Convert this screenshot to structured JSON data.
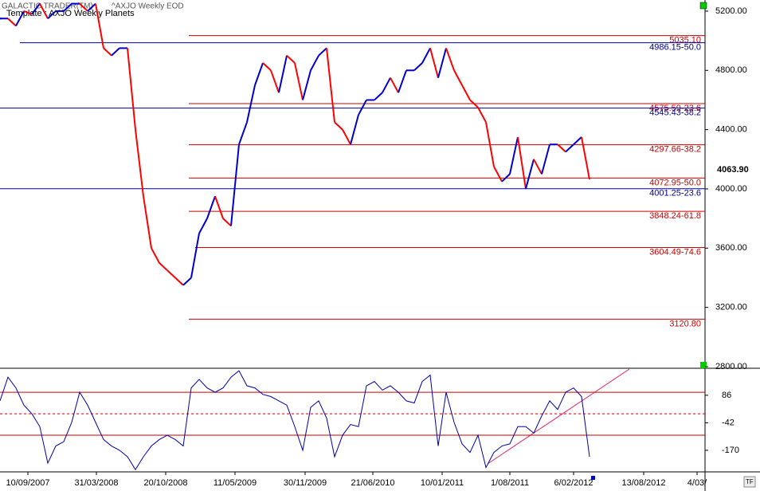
{
  "header": {
    "app": "GALACTIC TRADER(TM)",
    "symbol": "^AXJO Weekly EOD",
    "template": "Template : AXJO Weekly Planets",
    "tf": "TF"
  },
  "chart_data": [
    {
      "type": "line",
      "up_color": "#0000cc",
      "down_color": "#ff0000",
      "xlim": [
        0,
        885
      ],
      "ylim": [
        2800,
        5275
      ],
      "x": [
        0,
        10,
        20,
        30,
        40,
        50,
        60,
        70,
        80,
        90,
        100,
        110,
        120,
        130,
        140,
        150,
        160,
        170,
        180,
        190,
        200,
        210,
        220,
        230,
        240,
        250,
        260,
        270,
        280,
        290,
        300,
        310,
        320,
        330,
        340,
        350,
        360,
        370,
        380,
        390,
        400,
        410,
        420,
        430,
        440,
        450,
        460,
        470,
        480,
        490,
        500,
        510,
        520,
        530,
        540,
        550,
        560,
        570,
        580,
        590,
        600,
        610,
        620,
        630,
        640,
        650,
        660,
        670,
        680,
        690,
        700,
        710,
        720,
        730,
        740
      ],
      "series": [
        {
          "values": [
            5150,
            5150,
            5100,
            5200,
            5180,
            5250,
            5150,
            5200,
            5200,
            5250,
            5250,
            5200,
            5250,
            4950,
            4900,
            4950,
            4950,
            4400,
            3950,
            3600,
            3500,
            3450,
            3400,
            3350,
            3400,
            3700,
            3800,
            3950,
            3800,
            3750,
            4300,
            4450,
            4700,
            4850,
            4800,
            4650,
            4900,
            4850,
            4600,
            4800,
            4900,
            4950,
            4450,
            4400,
            4300,
            4500,
            4600,
            4600,
            4650,
            4750,
            4650,
            4800,
            4800,
            4850,
            4950,
            4750,
            4950,
            4800,
            4700,
            4600,
            4550,
            4450,
            4150,
            4050,
            4100,
            4350,
            4000,
            4200,
            4100,
            4300,
            4300,
            4250,
            4300,
            4350,
            4063.9
          ]
        }
      ],
      "yticks": [
        {
          "value": 5200,
          "label": "5200.00"
        },
        {
          "value": 4800,
          "label": "4800.00"
        },
        {
          "value": 4400,
          "label": "4400.00"
        },
        {
          "value": 4000,
          "label": "4000.00"
        },
        {
          "value": 3600,
          "label": "3600.00"
        },
        {
          "value": 3200,
          "label": "3200.00"
        },
        {
          "value": 2800,
          "label": "2800.00"
        }
      ],
      "levels": [
        {
          "value": 5035.1,
          "label": "5035.10",
          "color": "#cc0000",
          "from": 237
        },
        {
          "value": 4986.15,
          "label": "4986.15-50.0",
          "color": "#000099",
          "from": 25
        },
        {
          "value": 4575.59,
          "label": "4575.59-23.6",
          "color": "#cc0000",
          "from": 237
        },
        {
          "value": 4545.43,
          "label": "4545.43-38.2",
          "color": "#000099",
          "from": 0
        },
        {
          "value": 4297.66,
          "label": "4297.66-38.2",
          "color": "#cc0000",
          "from": 237
        },
        {
          "value": 4072.95,
          "label": "4072.95-50.0",
          "color": "#cc0000",
          "from": 237
        },
        {
          "value": 4001.25,
          "label": "4001.25-23.6",
          "color": "#000099",
          "from": 0
        },
        {
          "value": 3848.24,
          "label": "3848.24-61.8",
          "color": "#cc0000",
          "from": 237
        },
        {
          "value": 3604.49,
          "label": "3604.49-74.6",
          "color": "#cc0000",
          "from": 245
        },
        {
          "value": 3120.8,
          "label": "3120.80",
          "color": "#cc0000",
          "from": 237
        }
      ],
      "last": {
        "value": 4063.9,
        "label": "4063.90"
      },
      "xticks": [
        {
          "value": 35,
          "label": "10/09/2007"
        },
        {
          "value": 121,
          "label": "31/03/2008"
        },
        {
          "value": 208,
          "label": "20/10/2008"
        },
        {
          "value": 295,
          "label": "11/05/2009"
        },
        {
          "value": 383,
          "label": "30/11/2009"
        },
        {
          "value": 468,
          "label": "21/06/2010"
        },
        {
          "value": 555,
          "label": "10/01/2011"
        },
        {
          "value": 640,
          "label": "1/08/2011"
        },
        {
          "value": 720,
          "label": "6/02/2012"
        },
        {
          "value": 808,
          "label": "13/08/2012"
        },
        {
          "value": 875,
          "label": "4/03/"
        }
      ]
    },
    {
      "type": "line",
      "color": "#0000aa",
      "xlim": [
        0,
        885
      ],
      "ylim": [
        -263,
        208
      ],
      "series": [
        {
          "values": [
            60,
            170,
            120,
            40,
            0,
            -60,
            -230,
            -150,
            -130,
            -40,
            100,
            40,
            -40,
            -120,
            -150,
            -170,
            -200,
            -260,
            -200,
            -150,
            -120,
            -100,
            -120,
            -150,
            120,
            160,
            120,
            100,
            120,
            170,
            200,
            130,
            120,
            90,
            80,
            60,
            40,
            -60,
            -170,
            30,
            60,
            -20,
            -200,
            -100,
            -50,
            -60,
            130,
            150,
            110,
            130,
            100,
            60,
            50,
            150,
            180,
            -150,
            100,
            -40,
            -140,
            -180,
            -100,
            -250,
            -180,
            -150,
            -140,
            -60,
            -60,
            -90,
            -10,
            60,
            20,
            100,
            120,
            80,
            -200
          ]
        }
      ],
      "yticks": [
        86,
        -42,
        -170
      ],
      "levels": [
        {
          "value": 100,
          "dashed": false
        },
        {
          "value": 0,
          "dashed": true
        },
        {
          "value": -100,
          "dashed": false
        }
      ]
    }
  ]
}
